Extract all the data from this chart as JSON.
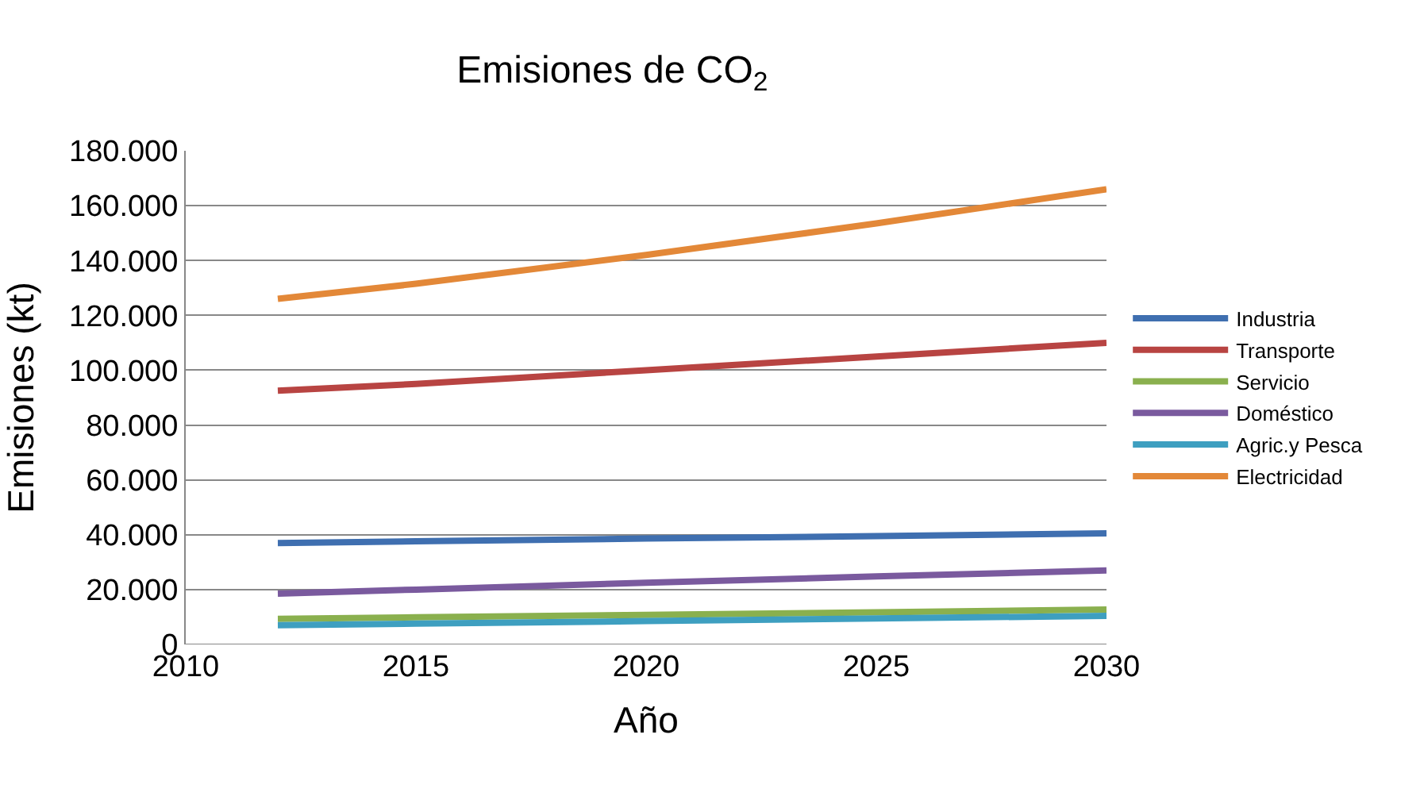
{
  "chart_data": {
    "type": "line",
    "title": "Emisiones de CO$_{2}$",
    "xlabel": "Año",
    "ylabel": "Emisiones (kt)",
    "x": [
      2012,
      2015,
      2020,
      2025,
      2030
    ],
    "series": [
      {
        "name": "Industria",
        "color": "#3f6fb0",
        "values": [
          37000,
          37600,
          38600,
          39500,
          40500
        ]
      },
      {
        "name": "Transporte",
        "color": "#b84442",
        "values": [
          92500,
          95000,
          100000,
          105000,
          110000
        ]
      },
      {
        "name": "Servicio",
        "color": "#8ab04e",
        "values": [
          9300,
          9900,
          10800,
          11700,
          12700
        ]
      },
      {
        "name": "Doméstico",
        "color": "#7a5a9e",
        "values": [
          18500,
          20000,
          22500,
          24800,
          27000
        ]
      },
      {
        "name": "Agric.y Pesca",
        "color": "#3e9fc0",
        "values": [
          7000,
          7600,
          8500,
          9500,
          10400
        ]
      },
      {
        "name": "Electricidad",
        "color": "#e38838",
        "values": [
          126000,
          131500,
          142000,
          153500,
          166000
        ]
      }
    ],
    "xlim": [
      2010,
      2030
    ],
    "xticks": [
      2010,
      2015,
      2020,
      2025,
      2030
    ],
    "ylim": [
      0,
      180000
    ],
    "yticks": [
      0,
      {
        "value": 20000,
        "label": "20.000"
      },
      {
        "value": 40000,
        "label": "40.000"
      },
      {
        "value": 60000,
        "label": "60.000"
      },
      {
        "value": 80000,
        "label": "80.000"
      },
      {
        "value": 100000,
        "label": "100.000"
      },
      {
        "value": 120000,
        "label": "120.000"
      },
      {
        "value": 140000,
        "label": "140.000"
      },
      {
        "value": 160000,
        "label": "160.000"
      },
      {
        "value": 180000,
        "label": "180.000"
      }
    ],
    "grid": "y",
    "legend": "right",
    "marker": "none",
    "line_style": "solid"
  }
}
